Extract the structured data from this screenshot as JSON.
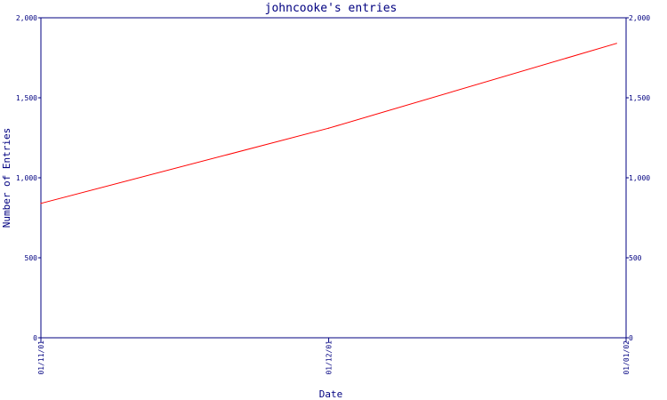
{
  "chart_data": {
    "type": "line",
    "title": "johncooke's entries",
    "xlabel": "Date",
    "ylabel": "Number of Entries",
    "x_ticks": [
      "01/11/01",
      "01/12/01",
      "01/01/02"
    ],
    "y_ticks": [
      "0",
      "500",
      "1,000",
      "1,500",
      "2,000"
    ],
    "ylim": [
      0,
      2000
    ],
    "xlim": [
      "2001-11-01",
      "2002-01-01"
    ],
    "series": [
      {
        "color": "#ff0000",
        "x": [
          "2001-11-01",
          "2001-12-01",
          "2001-12-31"
        ],
        "y": [
          840,
          1310,
          1840
        ]
      }
    ],
    "grid": false,
    "right_axis": true
  },
  "colors": {
    "axis": "#000080",
    "line": "#ff0000",
    "background": "#ffffff"
  }
}
